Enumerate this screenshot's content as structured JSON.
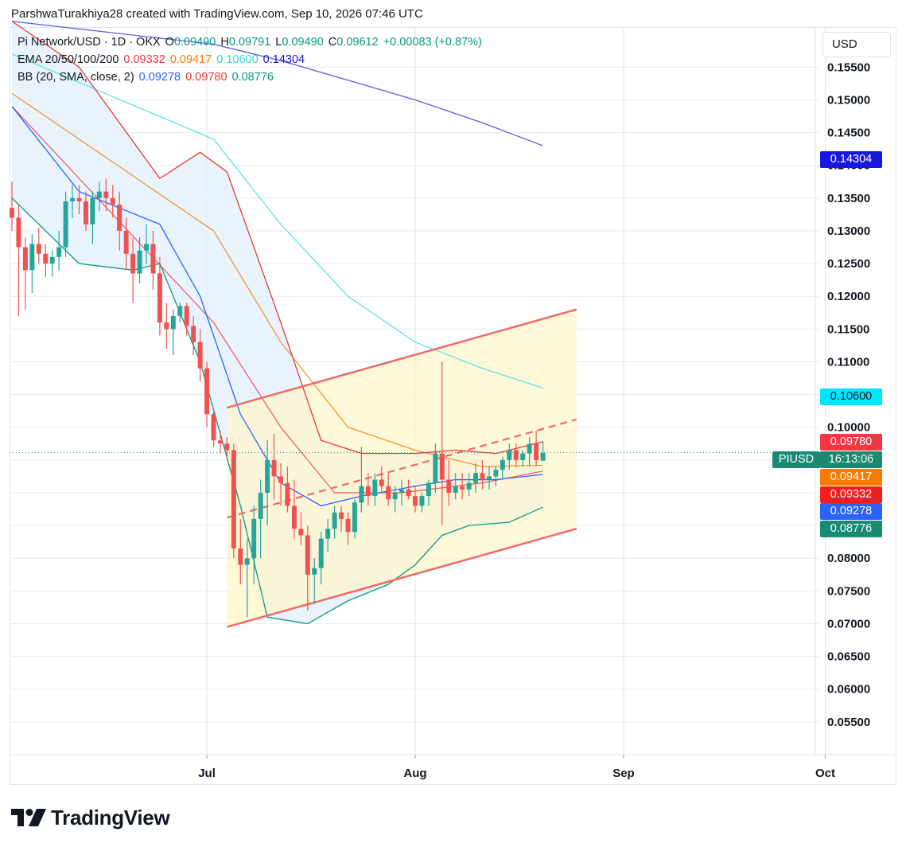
{
  "header": {
    "caption": "ParshwaTurakhiya28 created with TradingView.com, Sep 10, 2026 07:46 UTC"
  },
  "legend": {
    "symbol": "Pi Network/USD · 1D · OKX",
    "o_label": "O",
    "o_value": "0.09490",
    "h_label": "H",
    "h_value": "0.09791",
    "l_label": "L",
    "l_value": "0.09490",
    "c_label": "C",
    "c_value": "0.09612",
    "change": "+0.00083 (+0.87%)",
    "ema_label": "EMA 20/50/100/200",
    "ema20": "0.09332",
    "ema50": "0.09417",
    "ema100": "0.10600",
    "ema200": "0.14304",
    "bb_label": "BB (20, SMA, close, 2)",
    "bb_basis": "0.09278",
    "bb_upper": "0.09780",
    "bb_lower": "0.08776"
  },
  "currency": "USD",
  "price_tags": {
    "ema200": "0.14304",
    "ema100": "0.10600",
    "bb_upper": "0.09780",
    "symbol": "PIUSD",
    "countdown": "16:13:06",
    "ema50": "0.09417",
    "ema20": "0.09332",
    "bb_basis": "0.09278",
    "bb_lower": "0.08776"
  },
  "colors": {
    "up": "#26a69a",
    "down": "#ef5350",
    "ema20": "#f23645",
    "ema50": "#f57c00",
    "ema100": "#5ce6e6",
    "ema200": "#2962ff",
    "ema200_line": "#5b5be6",
    "bb_basis": "#2962ff",
    "bb_upper": "#e53935",
    "bb_lower": "#089981",
    "bb_fill": "#e3f0fb",
    "channel_fill": "#fff6cc",
    "channel_line": "#f06a6a",
    "price_line": "#1a8a72"
  },
  "brand": {
    "name": "TradingView"
  },
  "chart_data": {
    "type": "candlestick",
    "ylim": [
      0.05,
      0.161
    ],
    "y_ticks": [
      "0.05500",
      "0.06000",
      "0.06500",
      "0.07000",
      "0.07500",
      "0.08000",
      "0.08500",
      "0.09000",
      "0.09500",
      "0.10000",
      "0.10500",
      "0.11000",
      "0.11500",
      "0.12000",
      "0.12500",
      "0.13000",
      "0.13500",
      "0.14000",
      "0.14500",
      "0.15000",
      "0.15500"
    ],
    "x_ticks": [
      {
        "label": "Jul",
        "date": "2026-07-01"
      },
      {
        "label": "Aug",
        "date": "2026-08-01"
      },
      {
        "label": "Sep",
        "date": "2026-09-01"
      },
      {
        "label": "Oct",
        "date": "2026-10-01"
      }
    ],
    "start_date": "2026-06-02",
    "last_close": 0.09612,
    "candles": [
      [
        0.1335,
        0.1375,
        0.13,
        0.132
      ],
      [
        0.132,
        0.134,
        0.117,
        0.1275
      ],
      [
        0.1275,
        0.129,
        0.118,
        0.124
      ],
      [
        0.124,
        0.1295,
        0.1205,
        0.128
      ],
      [
        0.128,
        0.1305,
        0.125,
        0.1265
      ],
      [
        0.1265,
        0.128,
        0.123,
        0.125
      ],
      [
        0.125,
        0.127,
        0.123,
        0.126
      ],
      [
        0.126,
        0.13,
        0.124,
        0.1275
      ],
      [
        0.1275,
        0.136,
        0.126,
        0.1345
      ],
      [
        0.1345,
        0.137,
        0.132,
        0.135
      ],
      [
        0.135,
        0.137,
        0.1325,
        0.1345
      ],
      [
        0.1345,
        0.136,
        0.13,
        0.131
      ],
      [
        0.131,
        0.136,
        0.128,
        0.135
      ],
      [
        0.135,
        0.1375,
        0.133,
        0.136
      ],
      [
        0.136,
        0.138,
        0.133,
        0.135
      ],
      [
        0.135,
        0.137,
        0.132,
        0.134
      ],
      [
        0.134,
        0.136,
        0.127,
        0.13
      ],
      [
        0.13,
        0.132,
        0.124,
        0.1265
      ],
      [
        0.1265,
        0.129,
        0.119,
        0.1235
      ],
      [
        0.1235,
        0.129,
        0.122,
        0.127
      ],
      [
        0.127,
        0.131,
        0.125,
        0.128
      ],
      [
        0.128,
        0.13,
        0.121,
        0.1235
      ],
      [
        0.1235,
        0.126,
        0.114,
        0.116
      ],
      [
        0.116,
        0.119,
        0.112,
        0.115
      ],
      [
        0.115,
        0.118,
        0.111,
        0.117
      ],
      [
        0.117,
        0.119,
        0.116,
        0.1185
      ],
      [
        0.1185,
        0.119,
        0.114,
        0.1155
      ],
      [
        0.1155,
        0.117,
        0.111,
        0.113
      ],
      [
        0.113,
        0.115,
        0.107,
        0.109
      ],
      [
        0.109,
        0.11,
        0.1,
        0.102
      ],
      [
        0.102,
        0.103,
        0.097,
        0.098
      ],
      [
        0.098,
        0.0995,
        0.096,
        0.0975
      ],
      [
        0.0975,
        0.0985,
        0.095,
        0.0965
      ],
      [
        0.0965,
        0.0975,
        0.08,
        0.0815
      ],
      [
        0.0815,
        0.086,
        0.076,
        0.079
      ],
      [
        0.079,
        0.083,
        0.071,
        0.08
      ],
      [
        0.08,
        0.088,
        0.076,
        0.086
      ],
      [
        0.086,
        0.092,
        0.08,
        0.09
      ],
      [
        0.09,
        0.098,
        0.085,
        0.095
      ],
      [
        0.095,
        0.099,
        0.089,
        0.0925
      ],
      [
        0.0925,
        0.0945,
        0.088,
        0.0915
      ],
      [
        0.0915,
        0.094,
        0.087,
        0.088
      ],
      [
        0.088,
        0.092,
        0.083,
        0.0845
      ],
      [
        0.0845,
        0.087,
        0.082,
        0.0835
      ],
      [
        0.0835,
        0.085,
        0.072,
        0.0775
      ],
      [
        0.0775,
        0.08,
        0.073,
        0.0785
      ],
      [
        0.0785,
        0.084,
        0.076,
        0.083
      ],
      [
        0.083,
        0.086,
        0.081,
        0.0845
      ],
      [
        0.0845,
        0.088,
        0.083,
        0.087
      ],
      [
        0.087,
        0.088,
        0.084,
        0.086
      ],
      [
        0.086,
        0.087,
        0.082,
        0.084
      ],
      [
        0.084,
        0.089,
        0.083,
        0.0885
      ],
      [
        0.0885,
        0.097,
        0.087,
        0.091
      ],
      [
        0.091,
        0.093,
        0.088,
        0.0895
      ],
      [
        0.0895,
        0.093,
        0.088,
        0.092
      ],
      [
        0.092,
        0.094,
        0.09,
        0.091
      ],
      [
        0.091,
        0.093,
        0.088,
        0.089
      ],
      [
        0.089,
        0.091,
        0.087,
        0.09
      ],
      [
        0.09,
        0.092,
        0.088,
        0.0905
      ],
      [
        0.0905,
        0.092,
        0.089,
        0.0895
      ],
      [
        0.0895,
        0.091,
        0.087,
        0.088
      ],
      [
        0.088,
        0.09,
        0.087,
        0.0895
      ],
      [
        0.0895,
        0.092,
        0.088,
        0.0915
      ],
      [
        0.0915,
        0.0975,
        0.09,
        0.096
      ],
      [
        0.096,
        0.11,
        0.085,
        0.092
      ],
      [
        0.092,
        0.095,
        0.088,
        0.09
      ],
      [
        0.09,
        0.093,
        0.089,
        0.091
      ],
      [
        0.091,
        0.093,
        0.089,
        0.0905
      ],
      [
        0.0905,
        0.093,
        0.0895,
        0.0915
      ],
      [
        0.0915,
        0.0945,
        0.09,
        0.093
      ],
      [
        0.093,
        0.095,
        0.0905,
        0.092
      ],
      [
        0.092,
        0.094,
        0.0905,
        0.0925
      ],
      [
        0.0925,
        0.094,
        0.091,
        0.0935
      ],
      [
        0.0935,
        0.0955,
        0.092,
        0.095
      ],
      [
        0.095,
        0.0975,
        0.0935,
        0.0965
      ],
      [
        0.0965,
        0.0975,
        0.094,
        0.095
      ],
      [
        0.095,
        0.0965,
        0.094,
        0.096
      ],
      [
        0.096,
        0.0985,
        0.094,
        0.0975
      ],
      [
        0.0975,
        0.0995,
        0.094,
        0.095
      ],
      [
        0.0949,
        0.0979,
        0.0949,
        0.0961
      ]
    ],
    "ema20": [
      [
        0,
        0.149
      ],
      [
        30,
        0.116
      ],
      [
        40,
        0.1
      ],
      [
        48,
        0.09
      ],
      [
        58,
        0.09
      ],
      [
        70,
        0.0915
      ],
      [
        79,
        0.0933
      ]
    ],
    "ema50": [
      [
        0,
        0.151
      ],
      [
        30,
        0.13
      ],
      [
        40,
        0.113
      ],
      [
        50,
        0.1
      ],
      [
        60,
        0.0965
      ],
      [
        70,
        0.094
      ],
      [
        79,
        0.0942
      ]
    ],
    "ema100": [
      [
        0,
        0.157
      ],
      [
        30,
        0.144
      ],
      [
        40,
        0.131
      ],
      [
        50,
        0.12
      ],
      [
        60,
        0.113
      ],
      [
        70,
        0.109
      ],
      [
        79,
        0.106
      ]
    ],
    "ema200": [
      [
        0,
        0.162
      ],
      [
        30,
        0.1585
      ],
      [
        40,
        0.156
      ],
      [
        50,
        0.153
      ],
      [
        60,
        0.15
      ],
      [
        70,
        0.1465
      ],
      [
        79,
        0.143
      ]
    ],
    "bb_upper": [
      [
        0,
        0.162
      ],
      [
        10,
        0.155
      ],
      [
        22,
        0.138
      ],
      [
        28,
        0.142
      ],
      [
        32,
        0.139
      ],
      [
        40,
        0.116
      ],
      [
        46,
        0.098
      ],
      [
        52,
        0.096
      ],
      [
        60,
        0.096
      ],
      [
        66,
        0.0965
      ],
      [
        72,
        0.096
      ],
      [
        79,
        0.0978
      ]
    ],
    "bb_basis": [
      [
        0,
        0.149
      ],
      [
        10,
        0.136
      ],
      [
        22,
        0.131
      ],
      [
        28,
        0.12
      ],
      [
        34,
        0.102
      ],
      [
        40,
        0.0915
      ],
      [
        46,
        0.088
      ],
      [
        52,
        0.0895
      ],
      [
        60,
        0.091
      ],
      [
        66,
        0.092
      ],
      [
        72,
        0.092
      ],
      [
        79,
        0.0928
      ]
    ],
    "bb_lower": [
      [
        0,
        0.135
      ],
      [
        10,
        0.125
      ],
      [
        18,
        0.124
      ],
      [
        22,
        0.125
      ],
      [
        28,
        0.11
      ],
      [
        34,
        0.088
      ],
      [
        38,
        0.071
      ],
      [
        44,
        0.07
      ],
      [
        50,
        0.0735
      ],
      [
        56,
        0.076
      ],
      [
        60,
        0.079
      ],
      [
        64,
        0.0835
      ],
      [
        68,
        0.085
      ],
      [
        74,
        0.0855
      ],
      [
        79,
        0.0878
      ]
    ],
    "channel": {
      "upper": [
        [
          32,
          0.103
        ],
        [
          84,
          0.118
        ]
      ],
      "lower": [
        [
          32,
          0.0695
        ],
        [
          84,
          0.0845
        ]
      ],
      "mid": [
        [
          32,
          0.0862
        ],
        [
          84,
          0.1012
        ]
      ]
    }
  }
}
